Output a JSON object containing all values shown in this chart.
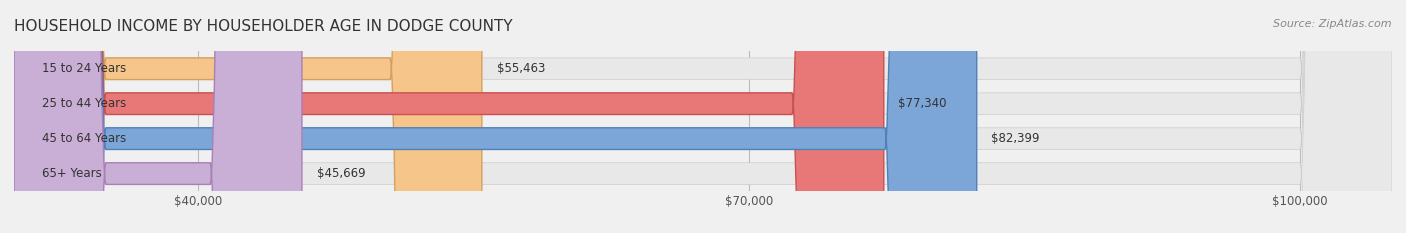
{
  "title": "HOUSEHOLD INCOME BY HOUSEHOLDER AGE IN DODGE COUNTY",
  "source": "Source: ZipAtlas.com",
  "categories": [
    "15 to 24 Years",
    "25 to 44 Years",
    "45 to 64 Years",
    "65+ Years"
  ],
  "values": [
    55463,
    77340,
    82399,
    45669
  ],
  "bar_colors": [
    "#f5c58a",
    "#e87878",
    "#7ca6d8",
    "#c9aed6"
  ],
  "bar_edge_colors": [
    "#d4a060",
    "#c85050",
    "#5080b8",
    "#a880b8"
  ],
  "value_labels": [
    "$55,463",
    "$77,340",
    "$82,399",
    "$45,669"
  ],
  "xlim": [
    30000,
    105000
  ],
  "xticks": [
    40000,
    70000,
    100000
  ],
  "xtick_labels": [
    "$40,000",
    "$70,000",
    "$100,000"
  ],
  "background_color": "#f0f0f0",
  "bar_bg_color": "#e8e8e8",
  "title_fontsize": 11,
  "source_fontsize": 8,
  "label_fontsize": 8.5,
  "value_fontsize": 8.5,
  "bar_height": 0.62,
  "fig_width": 14.06,
  "fig_height": 2.33
}
